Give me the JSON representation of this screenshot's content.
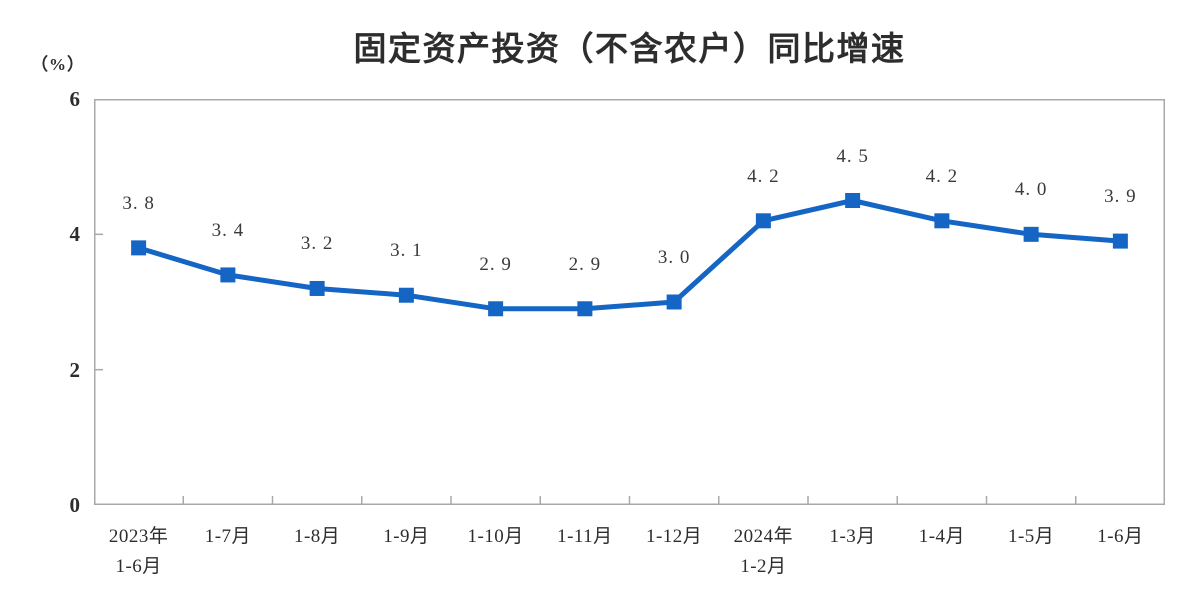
{
  "chart": {
    "title": "固定资产投资（不含农户）同比增速",
    "unit_label": "（%）",
    "colors": {
      "line": "#1565C4",
      "axis": "#A9A9A9",
      "text": "#2D2D2D",
      "point_label_text": "#3A3A3A",
      "background": "#FFFFFF"
    }
  },
  "chart_data": {
    "type": "line",
    "title": "固定资产投资（不含农户）同比增速",
    "unit": "%",
    "categories": [
      "2023年1-6月",
      "1-7月",
      "1-8月",
      "1-9月",
      "1-10月",
      "1-11月",
      "1-12月",
      "2024年1-2月",
      "1-3月",
      "1-4月",
      "1-5月",
      "1-6月"
    ],
    "category_display_lines": [
      [
        "2023年",
        "1-6月"
      ],
      [
        "1-7月"
      ],
      [
        "1-8月"
      ],
      [
        "1-9月"
      ],
      [
        "1-10月"
      ],
      [
        "1-11月"
      ],
      [
        "1-12月"
      ],
      [
        "2024年",
        "1-2月"
      ],
      [
        "1-3月"
      ],
      [
        "1-4月"
      ],
      [
        "1-5月"
      ],
      [
        "1-6月"
      ]
    ],
    "values": [
      3.8,
      3.4,
      3.2,
      3.1,
      2.9,
      2.9,
      3.0,
      4.2,
      4.5,
      4.2,
      4.0,
      3.9
    ],
    "point_labels": [
      "3. 8",
      "3. 4",
      "3. 2",
      "3. 1",
      "2. 9",
      "2. 9",
      "3. 0",
      "4. 2",
      "4. 5",
      "4. 2",
      "4. 0",
      "3. 9"
    ],
    "xlabel": "",
    "ylabel": "（%）",
    "ylim": [
      0,
      6
    ],
    "yticks": [
      0,
      2,
      4,
      6
    ],
    "grid": false,
    "legend": "none",
    "marker": "square",
    "tick_style": "inside"
  }
}
